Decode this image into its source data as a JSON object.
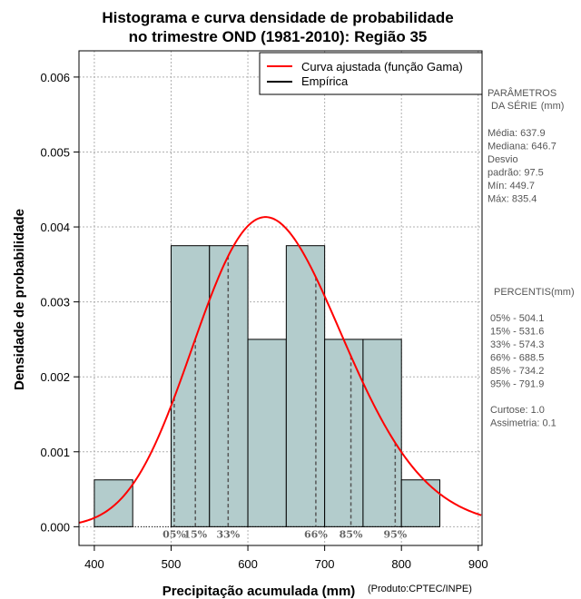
{
  "chart_data": {
    "type": "histogram",
    "title_line1": "Histograma e curva densidade de probabilidade",
    "title_line2": "no trimestre OND (1981-2010): Região 35",
    "xlabel": "Precipitação acumulada (mm)",
    "ylabel": "Densidade de probabilidade",
    "credit": "(Produto:CPTEC/INPE)",
    "xlim": [
      380,
      905
    ],
    "ylim": [
      -0.00025,
      0.00635
    ],
    "xticks": [
      400,
      500,
      600,
      700,
      800,
      900
    ],
    "yticks": [
      0.0,
      0.001,
      0.002,
      0.003,
      0.004,
      0.005,
      0.006
    ],
    "ytick_labels": [
      "0.000",
      "0.001",
      "0.002",
      "0.003",
      "0.004",
      "0.005",
      "0.006"
    ],
    "bins": [
      {
        "start": 400,
        "end": 450,
        "density": 0.000625
      },
      {
        "start": 450,
        "end": 500,
        "density": 0
      },
      {
        "start": 500,
        "end": 550,
        "density": 0.00375
      },
      {
        "start": 550,
        "end": 600,
        "density": 0.00375
      },
      {
        "start": 600,
        "end": 650,
        "density": 0.0025
      },
      {
        "start": 650,
        "end": 700,
        "density": 0.00375
      },
      {
        "start": 700,
        "end": 750,
        "density": 0.0025
      },
      {
        "start": 750,
        "end": 800,
        "density": 0.0025
      },
      {
        "start": 800,
        "end": 850,
        "density": 0.000625
      }
    ],
    "gamma_fit": {
      "mean": 637.9,
      "sd": 97.5
    },
    "legend": [
      {
        "label": "Curva ajustada (função Gama)",
        "color": "#ff0000"
      },
      {
        "label": "Empírica",
        "color": "#000000"
      }
    ],
    "percentiles": [
      {
        "label": "05%",
        "value": 504.1
      },
      {
        "label": "15%",
        "value": 531.6
      },
      {
        "label": "33%",
        "value": 574.3
      },
      {
        "label": "66%",
        "value": 688.5
      },
      {
        "label": "85%",
        "value": 734.2
      },
      {
        "label": "95%",
        "value": 791.9
      }
    ],
    "colors": {
      "bar_fill": "#b3cccc",
      "curve": "#ff0000",
      "grid": "#b0b0b0",
      "pct_line": "#555555",
      "pct_text": "#666666"
    }
  },
  "side_panel": {
    "params_title_1": "PARÂMETROS",
    "params_title_2": "DA SÉRIE",
    "params_unit": "(mm)",
    "params": [
      {
        "label": "Média:",
        "value": "637.9"
      },
      {
        "label": "Mediana:",
        "value": "646.7"
      },
      {
        "label": "Desvio",
        "value": ""
      },
      {
        "label": "padrão:",
        "value": "97.5"
      },
      {
        "label": "Mín:",
        "value": "449.7"
      },
      {
        "label": "Máx:",
        "value": "835.4"
      }
    ],
    "percentis_title": "PERCENTIS(mm)",
    "percentis": [
      {
        "label": "05% -",
        "value": "504.1"
      },
      {
        "label": "15% -",
        "value": "531.6"
      },
      {
        "label": "33% -",
        "value": "574.3"
      },
      {
        "label": "66% -",
        "value": "688.5"
      },
      {
        "label": "85% -",
        "value": "734.2"
      },
      {
        "label": "95% -",
        "value": "791.9"
      }
    ],
    "stats": [
      {
        "label": "Curtose:",
        "value": "1.0"
      },
      {
        "label": "Assimetria:",
        "value": "0.1"
      }
    ]
  }
}
